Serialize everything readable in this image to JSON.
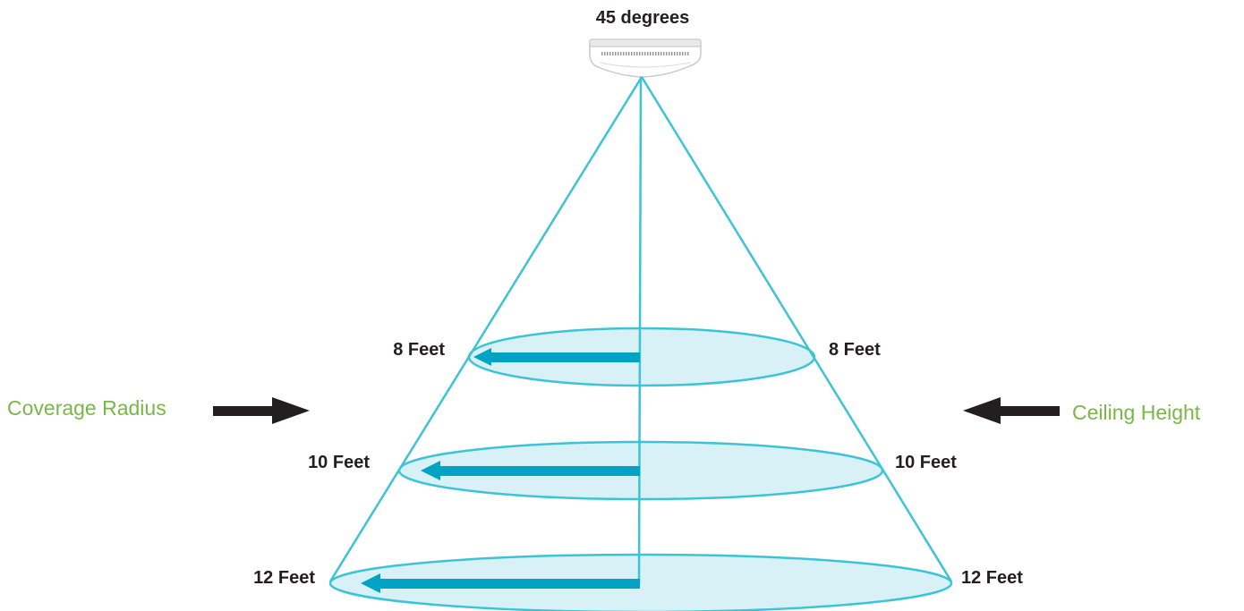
{
  "title": "45 degrees",
  "legend": {
    "left_label": "Coverage Radius",
    "right_label": "Ceiling Height",
    "label_color": "#7ab648"
  },
  "levels": [
    {
      "left_label": "8 Feet",
      "right_label": "8 Feet"
    },
    {
      "left_label": "10 Feet",
      "right_label": "10 Feet"
    },
    {
      "left_label": "12 Feet",
      "right_label": "12 Feet"
    }
  ],
  "colors": {
    "cone_line": "#3cc4d6",
    "ellipse_fill": "#d8f1f6",
    "radius_arrow": "#00a3c4",
    "black_arrow": "#231f20"
  },
  "icons": {
    "sensor": "ceiling-sensor-icon"
  }
}
